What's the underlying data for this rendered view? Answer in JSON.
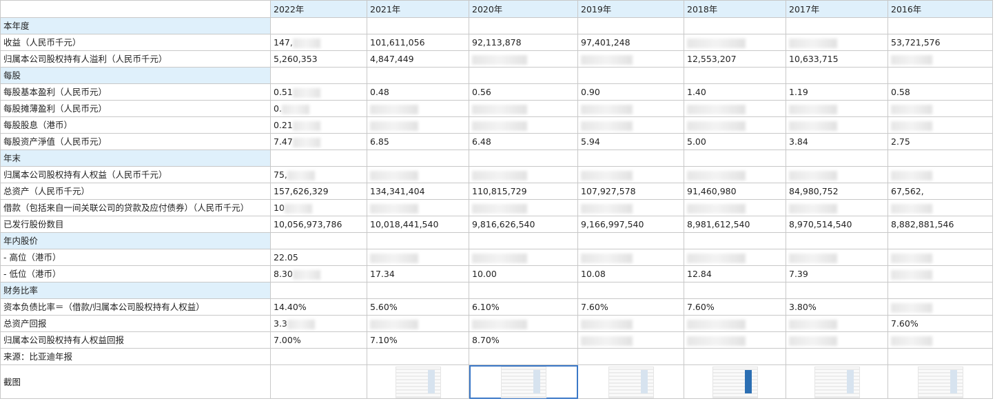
{
  "header": {
    "years": [
      "2022年",
      "2021年",
      "2020年",
      "2019年",
      "2018年",
      "2017年",
      "2016年"
    ]
  },
  "rows": [
    {
      "type": "section",
      "label": "本年度"
    },
    {
      "type": "data",
      "label": "收益（人民币千元）",
      "values": [
        "147,",
        "101,611,056",
        "92,113,878",
        "97,401,248",
        "",
        "",
        "53,721,576"
      ]
    },
    {
      "type": "data",
      "label": "归属本公司股权持有人溢利（人民币千元）",
      "values": [
        "5,260,353",
        "4,847,449",
        "",
        "",
        "12,553,207",
        "10,633,715",
        ""
      ]
    },
    {
      "type": "section",
      "label": "每股"
    },
    {
      "type": "data",
      "label": "每股基本盈利（人民币元）",
      "values": [
        "0.51",
        "0.48",
        "0.56",
        "0.90",
        "1.40",
        "1.19",
        "0.58"
      ]
    },
    {
      "type": "data",
      "label": "每股摊薄盈利（人民币元）",
      "values": [
        "0.",
        "",
        "",
        "",
        "",
        "",
        ""
      ]
    },
    {
      "type": "data",
      "label": "每股股息（港币）",
      "values": [
        "0.21",
        "",
        "",
        "",
        "",
        "",
        ""
      ]
    },
    {
      "type": "data",
      "label": "每股资产淨值（人民币元）",
      "values": [
        "7.47",
        "6.85",
        "6.48",
        "5.94",
        "5.00",
        "3.84",
        "2.75"
      ]
    },
    {
      "type": "section",
      "label": "年末"
    },
    {
      "type": "data",
      "label": "归属本公司股权持有人权益（人民币千元）",
      "values": [
        "75,",
        "",
        "",
        "",
        "",
        "",
        ""
      ]
    },
    {
      "type": "data",
      "label": "总资产（人民币千元）",
      "values": [
        "157,626,329",
        "134,341,404",
        "110,815,729",
        "107,927,578",
        "91,460,980",
        "84,980,752",
        "67,562,"
      ]
    },
    {
      "type": "data",
      "label": "借款（包括来自一间关联公司的贷款及应付债券）（人民币千元）",
      "values": [
        "10",
        "",
        "",
        "",
        "",
        "",
        ""
      ]
    },
    {
      "type": "data",
      "label": "已发行股份数目",
      "values": [
        "10,056,973,786",
        "10,018,441,540",
        "9,816,626,540",
        "9,166,997,540",
        "8,981,612,540",
        "8,970,514,540",
        "8,882,881,546"
      ]
    },
    {
      "type": "section",
      "label": "年内股价"
    },
    {
      "type": "data",
      "label": " - 高位（港币）",
      "values": [
        "22.05",
        "",
        "",
        "",
        "",
        "",
        ""
      ]
    },
    {
      "type": "data",
      "label": " - 低位（港币）",
      "values": [
        "8.30",
        "17.34",
        "10.00",
        "10.08",
        "12.84",
        "7.39",
        ""
      ]
    },
    {
      "type": "section",
      "label": "财务比率"
    },
    {
      "type": "data",
      "label": "资本负债比率＝（借款/归属本公司股权持有人权益）",
      "values": [
        "14.40%",
        "5.60%",
        "6.10%",
        "7.60%",
        "7.60%",
        "3.80%",
        ""
      ]
    },
    {
      "type": "data",
      "label": "总资产回报",
      "values": [
        "3.3",
        "",
        "",
        "",
        "",
        "",
        "7.60%"
      ]
    },
    {
      "type": "data",
      "label": "归属本公司股权持有人权益回报",
      "values": [
        "7.00%",
        "7.10%",
        "8.70%",
        "",
        "",
        "",
        ""
      ]
    },
    {
      "type": "note",
      "label": "来源：比亚迪年报"
    }
  ],
  "screenshot_row": {
    "label": "截图"
  }
}
